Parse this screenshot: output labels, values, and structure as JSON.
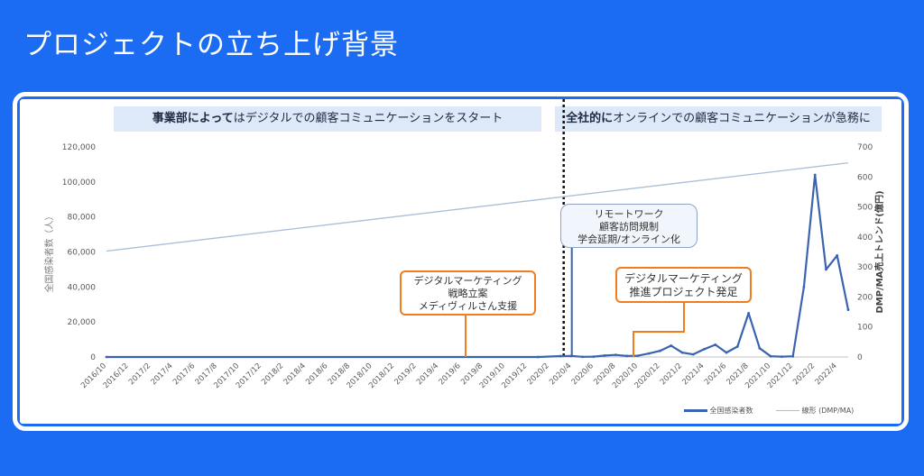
{
  "slide_title": "プロジェクトの立ち上げ背景",
  "banners": {
    "left": {
      "bold": "事業部によって",
      "rest": "はデジタルでの顧客コミュニケーションをスタート"
    },
    "right": {
      "bold": "全社的に",
      "rest": "オンラインでの顧客コミュニケーションが急務に"
    }
  },
  "callouts": {
    "marketing_strategy": [
      "デジタルマーケティング",
      "戦略立案",
      "メディヴィルさん支援"
    ],
    "remote_work": [
      "リモートワーク",
      "顧客訪問規制",
      "学会延期/オンライン化"
    ],
    "marketing_project": [
      "デジタルマーケティング",
      "推進プロジェクト発足"
    ]
  },
  "chart_data": {
    "type": "line",
    "ylabel": "全国感染者数（人）",
    "ylabel_right": "DMP/MA売上トレンド(億円)",
    "ylim": [
      0,
      120000
    ],
    "yticks": [
      "120,000",
      "100,000",
      "80,000",
      "60,000",
      "40,000",
      "20,000",
      "0"
    ],
    "ylim_right": [
      0,
      700
    ],
    "yticks_right": [
      "700",
      "600",
      "500",
      "400",
      "300",
      "200",
      "100",
      "0"
    ],
    "x_categories": [
      "2016/10",
      "2016/12",
      "2017/2",
      "2017/4",
      "2017/6",
      "2017/8",
      "2017/10",
      "2017/12",
      "2018/2",
      "2018/4",
      "2018/6",
      "2018/8",
      "2018/10",
      "2018/12",
      "2019/2",
      "2019/4",
      "2019/6",
      "2019/8",
      "2019/10",
      "2019/12",
      "2020/2",
      "2020/4",
      "2020/6",
      "2020/8",
      "2020/10",
      "2020/12",
      "2021/2",
      "2021/4",
      "2021/6",
      "2021/8",
      "2021/10",
      "2021/12",
      "2022/2",
      "2022/4"
    ],
    "vertical_marker": "2020/3",
    "series": [
      {
        "name": "全国感染者数",
        "axis": "left",
        "color": "#3a64b0",
        "points": [
          [
            "2016/10",
            0
          ],
          [
            "2020/1",
            0
          ],
          [
            "2020/3",
            500
          ],
          [
            "2020/4",
            600
          ],
          [
            "2020/5",
            100
          ],
          [
            "2020/6",
            200
          ],
          [
            "2020/7",
            800
          ],
          [
            "2020/8",
            1200
          ],
          [
            "2020/9",
            600
          ],
          [
            "2020/10",
            700
          ],
          [
            "2020/11",
            2000
          ],
          [
            "2020/12",
            3500
          ],
          [
            "2021/1",
            6500
          ],
          [
            "2021/2",
            2500
          ],
          [
            "2021/3",
            1500
          ],
          [
            "2021/4",
            4500
          ],
          [
            "2021/5",
            7000
          ],
          [
            "2021/6",
            2500
          ],
          [
            "2021/7",
            6000
          ],
          [
            "2021/8",
            25000
          ],
          [
            "2021/9",
            5000
          ],
          [
            "2021/10",
            400
          ],
          [
            "2021/11",
            200
          ],
          [
            "2021/12",
            400
          ],
          [
            "2022/1",
            40000
          ],
          [
            "2022/2",
            104000
          ],
          [
            "2022/3",
            50000
          ],
          [
            "2022/4",
            58000
          ],
          [
            "2022/5",
            27000
          ]
        ]
      },
      {
        "name": "線形 (DMP/MA)",
        "axis": "right",
        "color": "#a9bfd8",
        "points": [
          [
            "2016/10",
            353
          ],
          [
            "2022/5",
            647
          ]
        ]
      }
    ],
    "legend_position": "bottom-right",
    "grid": false
  }
}
